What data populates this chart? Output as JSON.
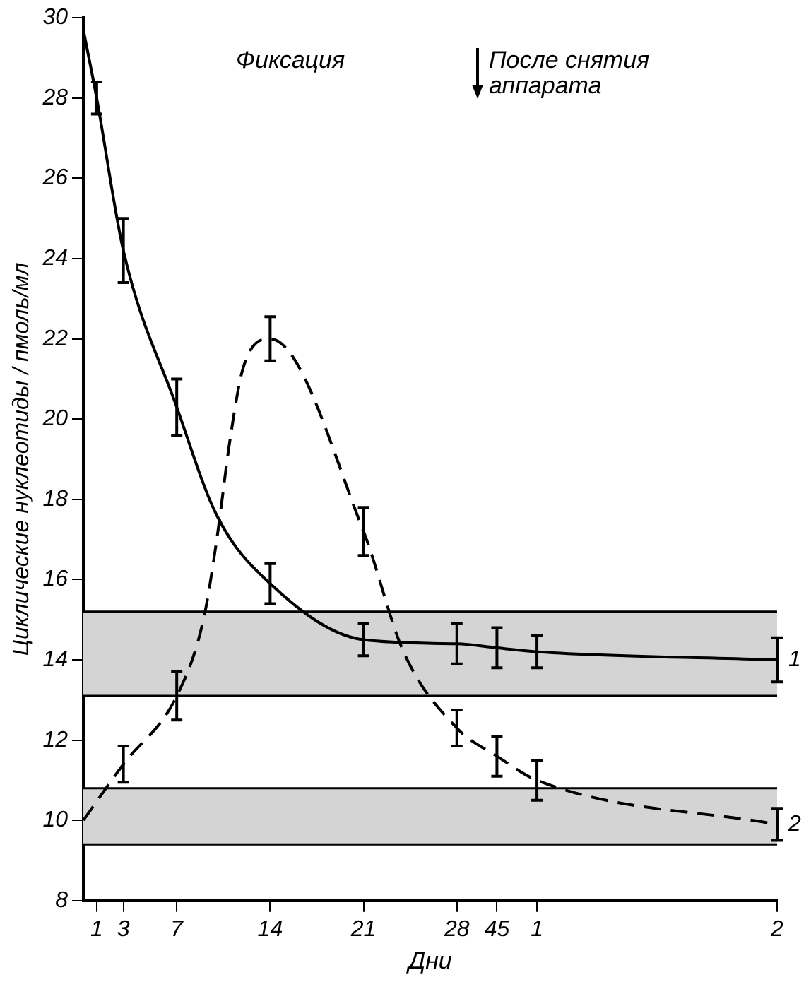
{
  "chart_data": {
    "type": "line",
    "xlabel": "Дни",
    "ylabel": "Циклические нуклеотиды / пмоль/мл",
    "annotations": [
      "Фиксация",
      "После снятия аппарата"
    ],
    "categories": [
      null,
      "1",
      null,
      "3",
      null,
      null,
      null,
      "7",
      null,
      null,
      null,
      null,
      null,
      null,
      "14",
      null,
      null,
      null,
      null,
      null,
      null,
      "21",
      null,
      null,
      null,
      null,
      null,
      null,
      "28",
      null,
      null,
      "45",
      null,
      null,
      "1",
      null,
      null,
      null,
      null,
      null,
      null,
      null,
      null,
      null,
      null,
      null,
      null,
      null,
      null,
      null,
      null,
      null,
      "2"
    ],
    "ylim": [
      8,
      30
    ],
    "yticks": [
      8,
      10,
      12,
      14,
      16,
      18,
      20,
      22,
      24,
      26,
      28,
      30
    ],
    "grid": false,
    "legend": false,
    "marker": "none",
    "bands": [
      {
        "axis": "y",
        "from": 13.1,
        "to": 15.2
      },
      {
        "axis": "y",
        "from": 9.4,
        "to": 10.8
      }
    ],
    "series": [
      {
        "name": "1",
        "color": "#000000",
        "line_style": "solid",
        "values": [
          29.7,
          28.0,
          null,
          24.2,
          null,
          null,
          null,
          20.3,
          null,
          null,
          17.6,
          null,
          null,
          null,
          15.9,
          null,
          null,
          null,
          null,
          null,
          null,
          14.5,
          null,
          null,
          null,
          null,
          null,
          null,
          14.4,
          null,
          null,
          14.3,
          null,
          null,
          14.2,
          null,
          null,
          null,
          null,
          null,
          null,
          null,
          null,
          null,
          null,
          null,
          null,
          null,
          null,
          null,
          null,
          null,
          14.0
        ],
        "errors": [
          null,
          0.4,
          null,
          0.8,
          null,
          null,
          null,
          0.7,
          null,
          null,
          null,
          null,
          null,
          null,
          0.5,
          null,
          null,
          null,
          null,
          null,
          null,
          0.4,
          null,
          null,
          null,
          null,
          null,
          null,
          0.5,
          null,
          null,
          0.5,
          null,
          null,
          0.4,
          null,
          null,
          null,
          null,
          null,
          null,
          null,
          null,
          null,
          null,
          null,
          null,
          null,
          null,
          null,
          null,
          null,
          0.55
        ]
      },
      {
        "name": "2",
        "color": "#000000",
        "line_style": "dashed",
        "values": [
          10.0,
          null,
          null,
          11.4,
          null,
          null,
          null,
          13.1,
          null,
          15.0,
          17.0,
          19.5,
          21.3,
          null,
          22.0,
          null,
          null,
          null,
          null,
          null,
          null,
          17.2,
          null,
          null,
          14.2,
          null,
          null,
          null,
          12.3,
          null,
          null,
          11.6,
          null,
          null,
          11.0,
          null,
          null,
          null,
          null,
          null,
          null,
          null,
          null,
          null,
          null,
          null,
          null,
          null,
          null,
          null,
          null,
          null,
          9.9
        ],
        "errors": [
          null,
          null,
          null,
          0.45,
          null,
          null,
          null,
          0.6,
          null,
          null,
          null,
          null,
          null,
          null,
          0.55,
          null,
          null,
          null,
          null,
          null,
          null,
          0.6,
          null,
          null,
          null,
          null,
          null,
          null,
          0.45,
          null,
          null,
          0.5,
          null,
          null,
          0.5,
          null,
          null,
          null,
          null,
          null,
          null,
          null,
          null,
          null,
          null,
          null,
          null,
          null,
          null,
          null,
          null,
          null,
          0.4
        ]
      }
    ]
  }
}
